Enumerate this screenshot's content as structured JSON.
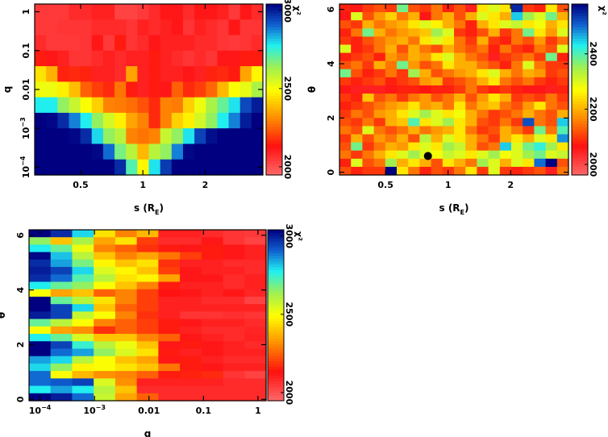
{
  "chart_data": [
    {
      "type": "heatmap",
      "xlabel": "s (R",
      "xlabel_sub": "E",
      "xlabel_close": ")",
      "ylabel": "q",
      "colorbar_label": "χ²",
      "x_scale": "log",
      "y_scale": "log",
      "xlim": [
        0.3,
        3.8
      ],
      "ylim": [
        6.3e-05,
        1.58
      ],
      "x_ticks": [
        {
          "value": 0.5,
          "label": "0.5"
        },
        {
          "value": 1,
          "label": "1"
        },
        {
          "value": 2,
          "label": "2"
        }
      ],
      "y_ticks": [
        {
          "value": 1,
          "label": "1",
          "sup": ""
        },
        {
          "value": 0.1,
          "label": "0.1",
          "sup": ""
        },
        {
          "value": 0.01,
          "label": "0.01",
          "sup": ""
        },
        {
          "value": 0.001,
          "label": "10",
          "sup": "−3"
        },
        {
          "value": 0.0001,
          "label": "10",
          "sup": "−4"
        }
      ],
      "colorbar_range": [
        1948,
        3040
      ],
      "colorbar_ticks": [
        {
          "value": 2000,
          "label": "2000"
        },
        {
          "value": 2500,
          "label": "2500"
        },
        {
          "value": 3000,
          "label": "3000"
        }
      ],
      "grid_rows_top_to_bottom": [
        [
          2050,
          2050,
          2050,
          2080,
          2080,
          2100,
          2100,
          2030,
          2030,
          2050,
          2080,
          2120,
          2120,
          2080,
          2120,
          2120,
          2100,
          2050,
          2120,
          2080
        ],
        [
          2050,
          2050,
          2060,
          2060,
          2060,
          2080,
          2080,
          2080,
          2060,
          2100,
          2080,
          2100,
          2120,
          2060,
          2100,
          2080,
          2060,
          2120,
          2060,
          2060
        ],
        [
          2080,
          2050,
          2050,
          2050,
          2060,
          2120,
          2050,
          2150,
          2060,
          2080,
          2120,
          2100,
          2100,
          2100,
          2080,
          2080,
          2060,
          2050,
          2060,
          2080
        ],
        [
          2150,
          2120,
          2100,
          2060,
          2060,
          2080,
          2100,
          2080,
          2100,
          2100,
          2150,
          2100,
          2080,
          2060,
          2080,
          2060,
          2120,
          2120,
          2150,
          2150
        ],
        [
          2450,
          2370,
          2160,
          2170,
          2160,
          2100,
          2100,
          2080,
          2350,
          2100,
          2150,
          2100,
          2100,
          2120,
          2100,
          2160,
          2170,
          2150,
          2350,
          2480
        ],
        [
          2520,
          2520,
          2470,
          2390,
          2250,
          2200,
          2170,
          2280,
          2150,
          2100,
          2150,
          2120,
          2250,
          2170,
          2200,
          2260,
          2380,
          2500,
          2530,
          2620
        ],
        [
          2780,
          2780,
          2650,
          2580,
          2500,
          2420,
          2300,
          2290,
          2270,
          2230,
          2170,
          2300,
          2290,
          2420,
          2520,
          2620,
          2700,
          2790,
          2940,
          3000
        ],
        [
          3050,
          3030,
          2980,
          2880,
          2780,
          2650,
          2560,
          2470,
          2350,
          2300,
          2170,
          2300,
          2420,
          2470,
          2560,
          2650,
          2780,
          2880,
          3000,
          3050
        ],
        [
          3050,
          3050,
          3050,
          3030,
          2980,
          2800,
          2650,
          2600,
          2300,
          2280,
          2300,
          2580,
          2650,
          2790,
          2950,
          3020,
          3050,
          3050,
          3050,
          3050
        ],
        [
          3050,
          3050,
          3050,
          3050,
          3050,
          3030,
          2900,
          2680,
          2600,
          2380,
          2600,
          2650,
          2880,
          3030,
          3050,
          3050,
          3050,
          3050,
          3050,
          3050
        ],
        [
          3050,
          3050,
          3050,
          3050,
          3050,
          3050,
          3050,
          2980,
          2720,
          2480,
          2790,
          2960,
          3050,
          3050,
          3050,
          3050,
          3050,
          3050,
          3050,
          3050
        ]
      ]
    },
    {
      "type": "heatmap",
      "xlabel": "s (R",
      "xlabel_sub": "E",
      "xlabel_close": ")",
      "ylabel": "θ",
      "colorbar_label": "χ²",
      "x_scale": "log",
      "y_scale": "linear",
      "xlim": [
        0.3,
        3.8
      ],
      "ylim": [
        -0.1,
        6.2
      ],
      "x_ticks": [
        {
          "value": 0.5,
          "label": "0.5"
        },
        {
          "value": 1,
          "label": "1"
        },
        {
          "value": 2,
          "label": "2"
        }
      ],
      "y_ticks": [
        {
          "value": 0,
          "label": "0",
          "sup": ""
        },
        {
          "value": 2,
          "label": "2",
          "sup": ""
        },
        {
          "value": 4,
          "label": "4",
          "sup": ""
        },
        {
          "value": 6,
          "label": "6",
          "sup": ""
        }
      ],
      "colorbar_range": [
        1962,
        2580
      ],
      "colorbar_ticks": [
        {
          "value": 2000,
          "label": "2000"
        },
        {
          "value": 2200,
          "label": "2200"
        },
        {
          "value": 2400,
          "label": "2400"
        }
      ],
      "marker": {
        "s": 0.8,
        "theta": 0.6
      },
      "grid_rows_top_to_bottom": [
        [
          2080,
          2060,
          2100,
          2120,
          2100,
          2380,
          2120,
          2100,
          2150,
          2080,
          2120,
          2050,
          2250,
          2300,
          2250,
          2550,
          2100,
          2080,
          2250,
          2120
        ],
        [
          2060,
          2300,
          2120,
          2180,
          2230,
          2150,
          2200,
          2060,
          2150,
          2200,
          2120,
          2200,
          2300,
          2250,
          2200,
          2450,
          2350,
          2300,
          2380,
          2200
        ],
        [
          2120,
          2100,
          2200,
          2150,
          2180,
          2200,
          2250,
          2300,
          2260,
          2200,
          2150,
          2080,
          2200,
          2250,
          2300,
          2320,
          2250,
          2280,
          2200,
          2250
        ],
        [
          2080,
          2150,
          2380,
          2200,
          2150,
          2180,
          2200,
          2220,
          2350,
          2300,
          2100,
          2080,
          2120,
          2200,
          2100,
          2150,
          2380,
          2250,
          2180,
          2300
        ],
        [
          2100,
          2080,
          2120,
          2150,
          2180,
          2200,
          2150,
          2250,
          2300,
          2250,
          2150,
          2100,
          2200,
          2100,
          2080,
          2150,
          2120,
          2180,
          2100,
          2150
        ],
        [
          2300,
          2080,
          2100,
          2150,
          2200,
          2120,
          2200,
          2150,
          2120,
          2200,
          2150,
          2120,
          2150,
          2080,
          2150,
          2100,
          2080,
          2150,
          2120,
          2300
        ],
        [
          2080,
          2100,
          2120,
          2080,
          2180,
          2150,
          2200,
          2180,
          2250,
          2300,
          2200,
          2150,
          2120,
          2050,
          2100,
          2120,
          2150,
          2100,
          2380,
          2080
        ],
        [
          2120,
          2150,
          2100,
          2200,
          2150,
          2380,
          2180,
          2120,
          2150,
          2250,
          2200,
          2200,
          2150,
          2120,
          2080,
          2150,
          2300,
          2150,
          2100,
          2100
        ],
        [
          2380,
          2120,
          2080,
          2100,
          2150,
          2100,
          2350,
          2200,
          2120,
          2150,
          2180,
          2200,
          2250,
          2300,
          2200,
          2150,
          2200,
          2180,
          2100,
          2120
        ],
        [
          2100,
          2080,
          2100,
          2120,
          2080,
          2100,
          2120,
          2180,
          2200,
          2100,
          2120,
          2150,
          2200,
          2250,
          2150,
          2120,
          2150,
          2100,
          2080,
          2100
        ],
        [
          2060,
          2050,
          2050,
          2050,
          2060,
          2080,
          2080,
          2070,
          2080,
          2080,
          2100,
          2150,
          2100,
          2080,
          2100,
          2080,
          2060,
          2060,
          2050,
          2080
        ],
        [
          2100,
          2080,
          2220,
          2120,
          2150,
          2100,
          2150,
          2180,
          2120,
          2150,
          2200,
          2120,
          2180,
          2250,
          2200,
          2100,
          2120,
          2100,
          2150,
          2100
        ],
        [
          2080,
          2100,
          2120,
          2150,
          2180,
          2200,
          2250,
          2180,
          2200,
          2150,
          2250,
          2150,
          2200,
          2220,
          2150,
          2120,
          2180,
          2250,
          2150,
          2120
        ],
        [
          2100,
          2150,
          2120,
          2180,
          2200,
          2250,
          2300,
          2350,
          2300,
          2250,
          2280,
          2200,
          2150,
          2100,
          2120,
          2150,
          2200,
          2150,
          2120,
          2200
        ],
        [
          2120,
          2100,
          2150,
          2100,
          2200,
          2220,
          2400,
          2250,
          2300,
          2350,
          2250,
          2200,
          2120,
          2100,
          2150,
          2100,
          2520,
          2150,
          2120,
          2450
        ],
        [
          2150,
          2120,
          2300,
          2150,
          2120,
          2150,
          2200,
          2150,
          2180,
          2200,
          2250,
          2150,
          2100,
          2120,
          2200,
          2150,
          2100,
          2380,
          2150,
          2400
        ],
        [
          2100,
          2200,
          2120,
          2180,
          2150,
          2200,
          2120,
          2330,
          2200,
          2300,
          2250,
          2200,
          2150,
          2100,
          2200,
          2250,
          2200,
          2300,
          2250,
          2480
        ],
        [
          2120,
          2380,
          2100,
          2150,
          2200,
          2180,
          2250,
          2300,
          2250,
          2350,
          2320,
          2200,
          2120,
          2150,
          2450,
          2300,
          2380,
          2420,
          2350,
          2250
        ],
        [
          2150,
          2100,
          2150,
          2200,
          2250,
          2300,
          2350,
          2300,
          2280,
          2320,
          2300,
          2250,
          2300,
          2350,
          2280,
          2300,
          2350,
          2380,
          2300,
          2320
        ],
        [
          2080,
          2300,
          2120,
          2150,
          2350,
          2200,
          2250,
          2200,
          2120,
          2250,
          2200,
          2150,
          2350,
          2300,
          2200,
          2300,
          2250,
          2500,
          2580,
          2120
        ],
        [
          2120,
          2080,
          2100,
          2100,
          2580,
          2250,
          2150,
          2080,
          2120,
          2100,
          2150,
          2250,
          2100,
          2300,
          2100,
          2080,
          2100,
          2120,
          2050,
          2150
        ]
      ]
    },
    {
      "type": "heatmap",
      "xlabel": "q",
      "ylabel": "θ",
      "colorbar_label": "χ²",
      "x_scale": "log",
      "y_scale": "linear",
      "xlim": [
        6.3e-05,
        1.41
      ],
      "ylim": [
        -0.05,
        6.2
      ],
      "x_ticks": [
        {
          "value": 0.0001,
          "label": "10",
          "sup": "−4"
        },
        {
          "value": 0.001,
          "label": "10",
          "sup": "−3"
        },
        {
          "value": 0.01,
          "label": "0.01",
          "sup": ""
        },
        {
          "value": 0.1,
          "label": "0.1",
          "sup": ""
        },
        {
          "value": 1,
          "label": "1",
          "sup": ""
        }
      ],
      "y_ticks": [
        {
          "value": 0,
          "label": "0",
          "sup": ""
        },
        {
          "value": 2,
          "label": "2",
          "sup": ""
        },
        {
          "value": 4,
          "label": "4",
          "sup": ""
        },
        {
          "value": 6,
          "label": "6",
          "sup": ""
        }
      ],
      "colorbar_range": [
        1948,
        3040
      ],
      "colorbar_ticks": [
        {
          "value": 2000,
          "label": "2000"
        },
        {
          "value": 2500,
          "label": "2500"
        },
        {
          "value": 3000,
          "label": "3000"
        }
      ],
      "grid_rows_top_to_bottom": [
        [
          3040,
          2980,
          2800,
          2450,
          2300,
          2380,
          2100,
          2100,
          2080,
          2060,
          2050
        ],
        [
          2650,
          2400,
          2620,
          2350,
          2450,
          2200,
          2080,
          2080,
          2120,
          2060,
          2030
        ],
        [
          2780,
          2700,
          2520,
          2300,
          2250,
          2180,
          2150,
          2120,
          2150,
          2120,
          2100
        ],
        [
          3030,
          2820,
          2600,
          2400,
          2300,
          2350,
          2280,
          2200,
          2150,
          2120,
          2100
        ],
        [
          2980,
          2850,
          2680,
          2480,
          2400,
          2450,
          2180,
          2100,
          2100,
          2080,
          2080
        ],
        [
          3000,
          2950,
          2800,
          2550,
          2480,
          2400,
          2200,
          2120,
          2100,
          2100,
          2080
        ],
        [
          2980,
          2900,
          2720,
          2600,
          2450,
          2480,
          2350,
          2120,
          2120,
          2080,
          2100
        ],
        [
          2780,
          2700,
          2650,
          2500,
          2400,
          2300,
          2150,
          2100,
          2100,
          2080,
          2100
        ],
        [
          2500,
          2350,
          2400,
          2250,
          2300,
          2200,
          2130,
          2120,
          2100,
          2120,
          2090
        ],
        [
          3040,
          2700,
          2600,
          2450,
          2300,
          2200,
          2100,
          2100,
          2080,
          2080,
          2030
        ],
        [
          3040,
          2950,
          2800,
          2400,
          2250,
          2200,
          2100,
          2100,
          2100,
          2100,
          2100
        ],
        [
          3000,
          2950,
          2580,
          2500,
          2300,
          2180,
          2100,
          2060,
          2060,
          2070,
          2060
        ],
        [
          2700,
          2600,
          2500,
          2300,
          2250,
          2200,
          2150,
          2120,
          2100,
          2100,
          2080
        ],
        [
          2500,
          2350,
          2320,
          2180,
          2250,
          2200,
          2150,
          2100,
          2080,
          2080,
          2090
        ],
        [
          2780,
          2700,
          2550,
          2400,
          2400,
          2300,
          2250,
          2120,
          2100,
          2080,
          2100
        ],
        [
          3040,
          2950,
          2750,
          2600,
          2520,
          2400,
          2120,
          2150,
          2120,
          2100,
          2080
        ],
        [
          3040,
          2900,
          2850,
          2650,
          2550,
          2450,
          2150,
          2100,
          2120,
          2100,
          2100
        ],
        [
          2850,
          2800,
          2600,
          2500,
          2400,
          2350,
          2120,
          2150,
          2100,
          2080,
          2080
        ],
        [
          2800,
          2650,
          2480,
          2500,
          2450,
          2400,
          2280,
          2150,
          2120,
          2100,
          2100
        ],
        [
          2900,
          2500,
          2380,
          2320,
          2300,
          2250,
          2150,
          2160,
          2170,
          2060,
          2030
        ],
        [
          2900,
          2920,
          2950,
          2550,
          2320,
          2100,
          2100,
          2100,
          2100,
          2080,
          2080
        ],
        [
          2780,
          2850,
          2780,
          2600,
          2400,
          2080,
          2080,
          2080,
          2080,
          2080,
          2080
        ],
        [
          3040,
          3000,
          2900,
          2580,
          2350,
          2250,
          2080,
          2080,
          2080,
          2080,
          2080
        ]
      ]
    }
  ],
  "colors": {
    "colormap_stops": [
      "#ff6a6a",
      "#ff1010",
      "#ff9000",
      "#ffff00",
      "#a0f050",
      "#20f0f0",
      "#1060d0",
      "#000080"
    ],
    "marker": "#000000"
  }
}
